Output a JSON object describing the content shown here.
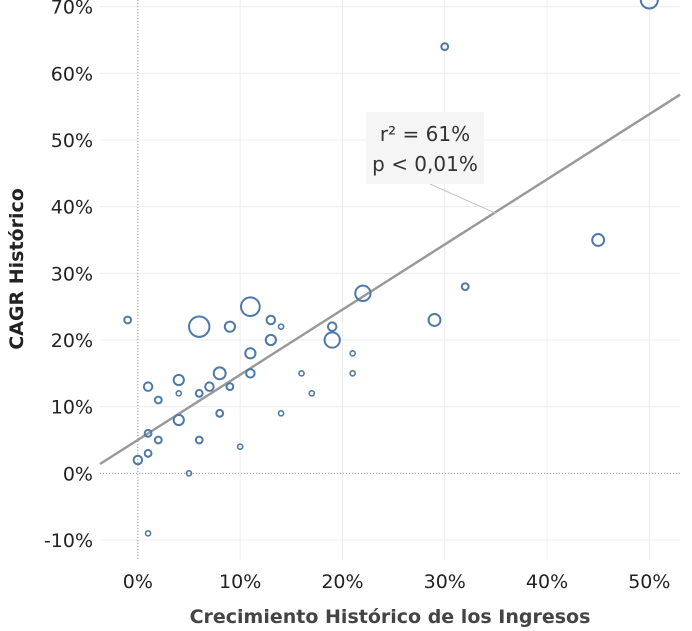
{
  "chart_data": {
    "type": "scatter",
    "xlabel": "Crecimiento Histórico de los Ingresos",
    "ylabel": "CAGR Histórico",
    "xlim": [
      -0.037,
      0.53
    ],
    "ylim": [
      -0.13,
      0.71
    ],
    "x_ticks": [
      0,
      0.1,
      0.2,
      0.3,
      0.4,
      0.5
    ],
    "x_tick_labels": [
      "0%",
      "10%",
      "20%",
      "30%",
      "40%",
      "50%"
    ],
    "y_ticks": [
      -0.1,
      0,
      0.1,
      0.2,
      0.3,
      0.4,
      0.5,
      0.6,
      0.7
    ],
    "y_tick_labels": [
      "-10%",
      "0%",
      "10%",
      "20%",
      "30%",
      "40%",
      "50%",
      "60%",
      "70%"
    ],
    "grid": true,
    "marker_color": "#4e79a7",
    "trendline": {
      "x": [
        -0.037,
        0.53
      ],
      "y": [
        0.014,
        0.568
      ],
      "color": "#999999"
    },
    "annotation": {
      "lines": [
        "r² = 61%",
        "p < 0,01%"
      ],
      "point": [
        0.35,
        0.39
      ]
    },
    "points": [
      {
        "x": 0.5,
        "y": 0.71,
        "size": 8
      },
      {
        "x": 0.3,
        "y": 0.64,
        "size": 2
      },
      {
        "x": 0.45,
        "y": 0.35,
        "size": 5
      },
      {
        "x": 0.32,
        "y": 0.28,
        "size": 2
      },
      {
        "x": 0.22,
        "y": 0.27,
        "size": 7
      },
      {
        "x": 0.29,
        "y": 0.23,
        "size": 5
      },
      {
        "x": 0.19,
        "y": 0.22,
        "size": 3
      },
      {
        "x": 0.19,
        "y": 0.2,
        "size": 7
      },
      {
        "x": 0.21,
        "y": 0.18,
        "size": 1
      },
      {
        "x": 0.21,
        "y": 0.15,
        "size": 1
      },
      {
        "x": 0.17,
        "y": 0.12,
        "size": 1
      },
      {
        "x": 0.16,
        "y": 0.15,
        "size": 1
      },
      {
        "x": 0.14,
        "y": 0.22,
        "size": 1
      },
      {
        "x": 0.14,
        "y": 0.09,
        "size": 1
      },
      {
        "x": 0.13,
        "y": 0.23,
        "size": 3
      },
      {
        "x": 0.13,
        "y": 0.2,
        "size": 4
      },
      {
        "x": 0.11,
        "y": 0.25,
        "size": 9
      },
      {
        "x": 0.11,
        "y": 0.18,
        "size": 4
      },
      {
        "x": 0.11,
        "y": 0.15,
        "size": 3
      },
      {
        "x": 0.1,
        "y": 0.04,
        "size": 1
      },
      {
        "x": 0.09,
        "y": 0.22,
        "size": 4
      },
      {
        "x": 0.09,
        "y": 0.13,
        "size": 2
      },
      {
        "x": 0.08,
        "y": 0.15,
        "size": 5
      },
      {
        "x": 0.08,
        "y": 0.09,
        "size": 2
      },
      {
        "x": 0.07,
        "y": 0.13,
        "size": 3
      },
      {
        "x": 0.06,
        "y": 0.22,
        "size": 10
      },
      {
        "x": 0.06,
        "y": 0.12,
        "size": 2
      },
      {
        "x": 0.06,
        "y": 0.05,
        "size": 2
      },
      {
        "x": 0.05,
        "y": 0.0,
        "size": 1
      },
      {
        "x": 0.04,
        "y": 0.14,
        "size": 4
      },
      {
        "x": 0.04,
        "y": 0.12,
        "size": 1
      },
      {
        "x": 0.04,
        "y": 0.08,
        "size": 4
      },
      {
        "x": 0.02,
        "y": 0.11,
        "size": 2
      },
      {
        "x": 0.02,
        "y": 0.05,
        "size": 2
      },
      {
        "x": 0.01,
        "y": 0.13,
        "size": 3
      },
      {
        "x": 0.01,
        "y": 0.06,
        "size": 2
      },
      {
        "x": 0.01,
        "y": 0.03,
        "size": 2
      },
      {
        "x": 0.01,
        "y": -0.09,
        "size": 1
      },
      {
        "x": 0.0,
        "y": 0.02,
        "size": 3
      },
      {
        "x": -0.01,
        "y": 0.23,
        "size": 2
      }
    ]
  }
}
